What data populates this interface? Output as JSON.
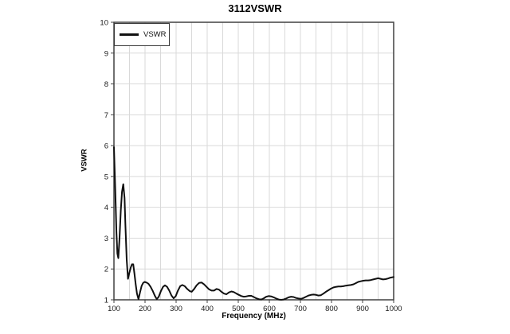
{
  "window": {
    "background": "#ffffff"
  },
  "chart_data": {
    "type": "line",
    "title": "3112VSWR",
    "xlabel": "Frequency (MHz)",
    "ylabel": "VSWR",
    "legend": [
      "VSWR"
    ],
    "legend_position": "top-left-inside",
    "xlim": [
      100,
      1000
    ],
    "ylim": [
      1,
      10
    ],
    "x_ticks": [
      100,
      200,
      300,
      400,
      500,
      600,
      700,
      800,
      900,
      1000
    ],
    "y_ticks": [
      1,
      2,
      3,
      4,
      5,
      6,
      7,
      8,
      9,
      10
    ],
    "x_minor_grid_step_mhz": 50,
    "grid": true,
    "line_color": "#101010",
    "grid_color": "#d9d9d9",
    "border_color": "#404040",
    "tick_text_color": "#1a1a1a",
    "series": [
      {
        "name": "VSWR",
        "points": [
          [
            100,
            5.95
          ],
          [
            104,
            4.6
          ],
          [
            108,
            3.2
          ],
          [
            111,
            2.5
          ],
          [
            114,
            2.35
          ],
          [
            118,
            3.0
          ],
          [
            122,
            3.9
          ],
          [
            126,
            4.5
          ],
          [
            130,
            4.75
          ],
          [
            134,
            4.3
          ],
          [
            137,
            3.4
          ],
          [
            141,
            2.3
          ],
          [
            145,
            1.68
          ],
          [
            149,
            1.85
          ],
          [
            154,
            2.05
          ],
          [
            158,
            2.15
          ],
          [
            162,
            2.15
          ],
          [
            166,
            1.85
          ],
          [
            170,
            1.5
          ],
          [
            174,
            1.2
          ],
          [
            179,
            1.02
          ],
          [
            184,
            1.25
          ],
          [
            189,
            1.45
          ],
          [
            194,
            1.55
          ],
          [
            199,
            1.58
          ],
          [
            205,
            1.56
          ],
          [
            211,
            1.52
          ],
          [
            218,
            1.42
          ],
          [
            225,
            1.28
          ],
          [
            232,
            1.12
          ],
          [
            238,
            1.02
          ],
          [
            244,
            1.1
          ],
          [
            251,
            1.28
          ],
          [
            258,
            1.42
          ],
          [
            264,
            1.47
          ],
          [
            271,
            1.42
          ],
          [
            278,
            1.3
          ],
          [
            285,
            1.14
          ],
          [
            292,
            1.05
          ],
          [
            299,
            1.12
          ],
          [
            306,
            1.3
          ],
          [
            313,
            1.44
          ],
          [
            320,
            1.48
          ],
          [
            328,
            1.44
          ],
          [
            336,
            1.35
          ],
          [
            344,
            1.28
          ],
          [
            350,
            1.26
          ],
          [
            358,
            1.35
          ],
          [
            366,
            1.47
          ],
          [
            374,
            1.55
          ],
          [
            382,
            1.56
          ],
          [
            390,
            1.5
          ],
          [
            398,
            1.42
          ],
          [
            406,
            1.34
          ],
          [
            414,
            1.3
          ],
          [
            422,
            1.3
          ],
          [
            430,
            1.35
          ],
          [
            438,
            1.33
          ],
          [
            446,
            1.26
          ],
          [
            454,
            1.2
          ],
          [
            462,
            1.18
          ],
          [
            470,
            1.24
          ],
          [
            478,
            1.27
          ],
          [
            486,
            1.25
          ],
          [
            494,
            1.2
          ],
          [
            502,
            1.16
          ],
          [
            510,
            1.12
          ],
          [
            518,
            1.1
          ],
          [
            526,
            1.11
          ],
          [
            534,
            1.13
          ],
          [
            542,
            1.13
          ],
          [
            550,
            1.09
          ],
          [
            558,
            1.05
          ],
          [
            566,
            1.02
          ],
          [
            574,
            1.01
          ],
          [
            582,
            1.05
          ],
          [
            590,
            1.1
          ],
          [
            598,
            1.12
          ],
          [
            606,
            1.11
          ],
          [
            614,
            1.08
          ],
          [
            622,
            1.04
          ],
          [
            630,
            1.01
          ],
          [
            638,
            1.0
          ],
          [
            646,
            1.01
          ],
          [
            654,
            1.04
          ],
          [
            662,
            1.08
          ],
          [
            670,
            1.1
          ],
          [
            678,
            1.09
          ],
          [
            686,
            1.06
          ],
          [
            694,
            1.04
          ],
          [
            702,
            1.03
          ],
          [
            710,
            1.06
          ],
          [
            718,
            1.1
          ],
          [
            726,
            1.14
          ],
          [
            734,
            1.16
          ],
          [
            742,
            1.17
          ],
          [
            750,
            1.16
          ],
          [
            758,
            1.14
          ],
          [
            766,
            1.15
          ],
          [
            774,
            1.2
          ],
          [
            782,
            1.26
          ],
          [
            790,
            1.31
          ],
          [
            798,
            1.36
          ],
          [
            806,
            1.4
          ],
          [
            814,
            1.42
          ],
          [
            822,
            1.43
          ],
          [
            830,
            1.43
          ],
          [
            838,
            1.44
          ],
          [
            846,
            1.46
          ],
          [
            854,
            1.47
          ],
          [
            862,
            1.48
          ],
          [
            870,
            1.5
          ],
          [
            878,
            1.54
          ],
          [
            886,
            1.58
          ],
          [
            894,
            1.6
          ],
          [
            902,
            1.62
          ],
          [
            910,
            1.63
          ],
          [
            918,
            1.63
          ],
          [
            926,
            1.64
          ],
          [
            934,
            1.66
          ],
          [
            942,
            1.68
          ],
          [
            950,
            1.7
          ],
          [
            958,
            1.68
          ],
          [
            966,
            1.66
          ],
          [
            974,
            1.67
          ],
          [
            982,
            1.69
          ],
          [
            990,
            1.72
          ],
          [
            1000,
            1.74
          ]
        ]
      }
    ]
  }
}
